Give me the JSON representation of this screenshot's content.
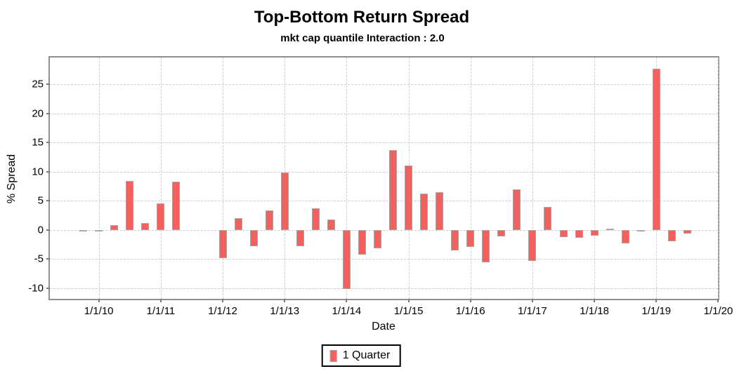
{
  "chart_data": {
    "type": "bar",
    "title": "Top-Bottom Return Spread",
    "subtitle": "mkt cap quantile Interaction : 2.0",
    "xlabel": "Date",
    "ylabel": "% Spread",
    "x_tick_labels": [
      "1/1/10",
      "1/1/11",
      "1/1/12",
      "1/1/13",
      "1/1/14",
      "1/1/15",
      "1/1/16",
      "1/1/17",
      "1/1/18",
      "1/1/19",
      "1/1/20"
    ],
    "y_ticks": [
      25,
      20,
      15,
      10,
      5,
      0,
      -5,
      -10
    ],
    "ylim": [
      -12.3,
      29.6
    ],
    "xlim_years": [
      2009.21,
      2020.04
    ],
    "grid": true,
    "legend": {
      "label": "1 Quarter",
      "position": "bottom-center"
    },
    "colors": {
      "bar_fill": "#f4605d",
      "bar_edge": "#a8a8a8",
      "tiny_bar": "#a9a9a9",
      "gridline": "#cdcdcd",
      "frame": "#8f8f8f"
    },
    "series": [
      {
        "name": "1 Quarter",
        "points": [
          {
            "date": "10/1/09",
            "value": -0.1
          },
          {
            "date": "1/1/10",
            "value": -0.1
          },
          {
            "date": "4/1/10",
            "value": 0.8
          },
          {
            "date": "7/1/10",
            "value": 8.4
          },
          {
            "date": "10/1/10",
            "value": 1.2
          },
          {
            "date": "1/1/11",
            "value": 4.5
          },
          {
            "date": "4/1/11",
            "value": 8.3
          },
          {
            "date": "1/1/12",
            "value": -4.8
          },
          {
            "date": "4/1/12",
            "value": 2.0
          },
          {
            "date": "7/1/12",
            "value": -2.8
          },
          {
            "date": "10/1/12",
            "value": 3.3
          },
          {
            "date": "1/1/13",
            "value": 9.9
          },
          {
            "date": "4/1/13",
            "value": -2.8
          },
          {
            "date": "7/1/13",
            "value": 3.7
          },
          {
            "date": "10/1/13",
            "value": 1.8
          },
          {
            "date": "1/1/14",
            "value": -10.1
          },
          {
            "date": "4/1/14",
            "value": -4.2
          },
          {
            "date": "7/1/14",
            "value": -3.1
          },
          {
            "date": "10/1/14",
            "value": 13.7
          },
          {
            "date": "1/1/15",
            "value": 11.1
          },
          {
            "date": "4/1/15",
            "value": 6.3
          },
          {
            "date": "7/1/15",
            "value": 6.5
          },
          {
            "date": "10/1/15",
            "value": -3.5
          },
          {
            "date": "1/1/16",
            "value": -2.9
          },
          {
            "date": "4/1/16",
            "value": -5.5
          },
          {
            "date": "7/1/16",
            "value": -1.1
          },
          {
            "date": "10/1/16",
            "value": 7.0
          },
          {
            "date": "1/1/17",
            "value": -5.3
          },
          {
            "date": "4/1/17",
            "value": 4.0
          },
          {
            "date": "7/1/17",
            "value": -1.2
          },
          {
            "date": "10/1/17",
            "value": -1.4
          },
          {
            "date": "1/1/18",
            "value": -1.0
          },
          {
            "date": "4/1/18",
            "value": 0.1
          },
          {
            "date": "7/1/18",
            "value": -2.3
          },
          {
            "date": "10/1/18",
            "value": -0.1
          },
          {
            "date": "1/1/19",
            "value": 27.7
          },
          {
            "date": "4/1/19",
            "value": -2.0
          },
          {
            "date": "7/1/19",
            "value": -0.6
          }
        ]
      }
    ]
  }
}
